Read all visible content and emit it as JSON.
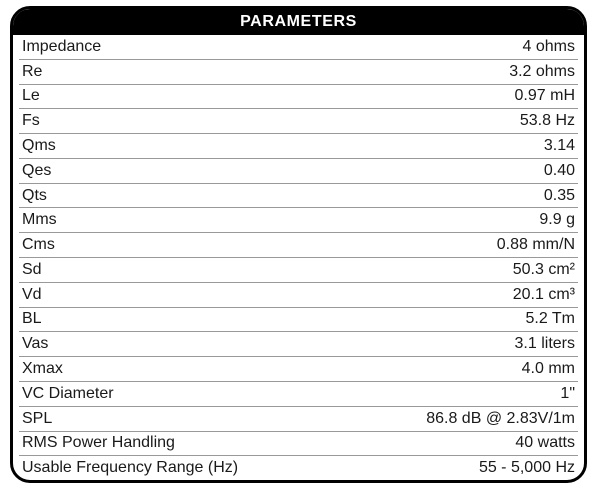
{
  "panel": {
    "title": "PARAMETERS"
  },
  "table": {
    "rows": [
      {
        "label": "Impedance",
        "value": "4 ohms"
      },
      {
        "label": "Re",
        "value": "3.2 ohms"
      },
      {
        "label": "Le",
        "value": "0.97 mH"
      },
      {
        "label": "Fs",
        "value": "53.8 Hz"
      },
      {
        "label": "Qms",
        "value": "3.14"
      },
      {
        "label": "Qes",
        "value": "0.40"
      },
      {
        "label": "Qts",
        "value": "0.35"
      },
      {
        "label": "Mms",
        "value": "9.9 g"
      },
      {
        "label": "Cms",
        "value": "0.88 mm/N"
      },
      {
        "label": "Sd",
        "value": "50.3 cm²"
      },
      {
        "label": "Vd",
        "value": "20.1 cm³"
      },
      {
        "label": "BL",
        "value": "5.2 Tm"
      },
      {
        "label": "Vas",
        "value": "3.1 liters"
      },
      {
        "label": "Xmax",
        "value": "4.0 mm"
      },
      {
        "label": "VC Diameter",
        "value": "1\""
      },
      {
        "label": "SPL",
        "value": "86.8 dB @ 2.83V/1m"
      },
      {
        "label": "RMS Power Handling",
        "value": "40 watts"
      },
      {
        "label": "Usable Frequency Range (Hz)",
        "value": "55 - 5,000 Hz"
      }
    ]
  },
  "colors": {
    "header_bg": "#000000",
    "header_text": "#ffffff",
    "row_text": "#1a1a1a",
    "separator": "#999999",
    "border": "#000000",
    "background": "#ffffff"
  }
}
